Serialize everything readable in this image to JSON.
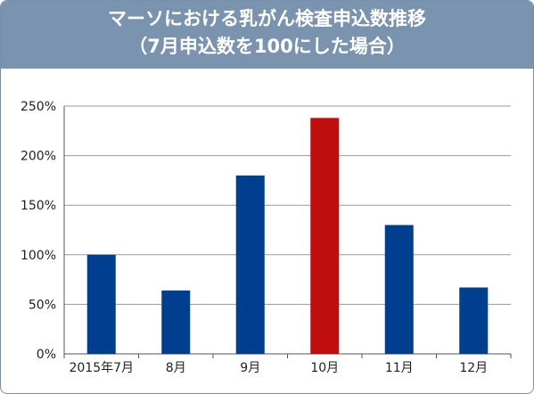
{
  "title_line1": "マーソにおける乳がん検査申込数推移",
  "title_line2": "（7月申込数を100にした場合）",
  "colors": {
    "header": "#7a93ae",
    "bar": "#003f8f",
    "highlight": "#c00d0d",
    "grid": "#9a9a9a"
  },
  "chart_data": {
    "type": "bar",
    "title": "マーソにおける乳がん検査申込数推移（7月申込数を100にした場合）",
    "categories": [
      "2015年7月",
      "8月",
      "9月",
      "10月",
      "11月",
      "12月"
    ],
    "values": [
      100,
      64,
      180,
      238,
      130,
      67
    ],
    "highlight_index": 3,
    "ylim": [
      0,
      250
    ],
    "yticks": [
      0,
      50,
      100,
      150,
      200,
      250
    ],
    "ytick_labels": [
      "0%",
      "50%",
      "100%",
      "150%",
      "200%",
      "250%"
    ],
    "xlabel": "",
    "ylabel": "",
    "grid": true,
    "legend": "none"
  }
}
